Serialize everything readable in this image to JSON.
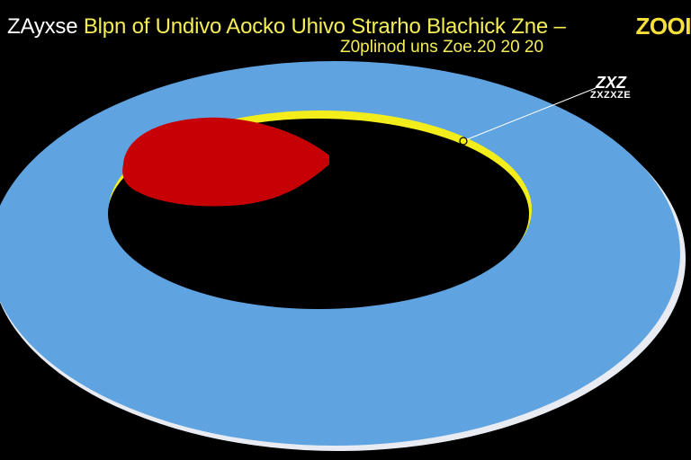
{
  "header": {
    "title_accent": "ZAyxse",
    "title_main": "Blpn of Undivo Aocko Uhivo Strarho Blachick Zne –",
    "title_brand": "ZOOI",
    "subtitle": "Z0plinod uns  Zoe.20  20  20"
  },
  "callout": {
    "label_top": "ZXZ",
    "label_bottom": "ZXZXZE"
  },
  "colors": {
    "background": "#000000",
    "outer_disk": "#5fa3e0",
    "outer_rim": "#e8ecf2",
    "yellow_ring": "#f3ee1b",
    "red_region": "#c70006",
    "text_yellow": "#f5ed58",
    "text_white": "#ffffff"
  }
}
